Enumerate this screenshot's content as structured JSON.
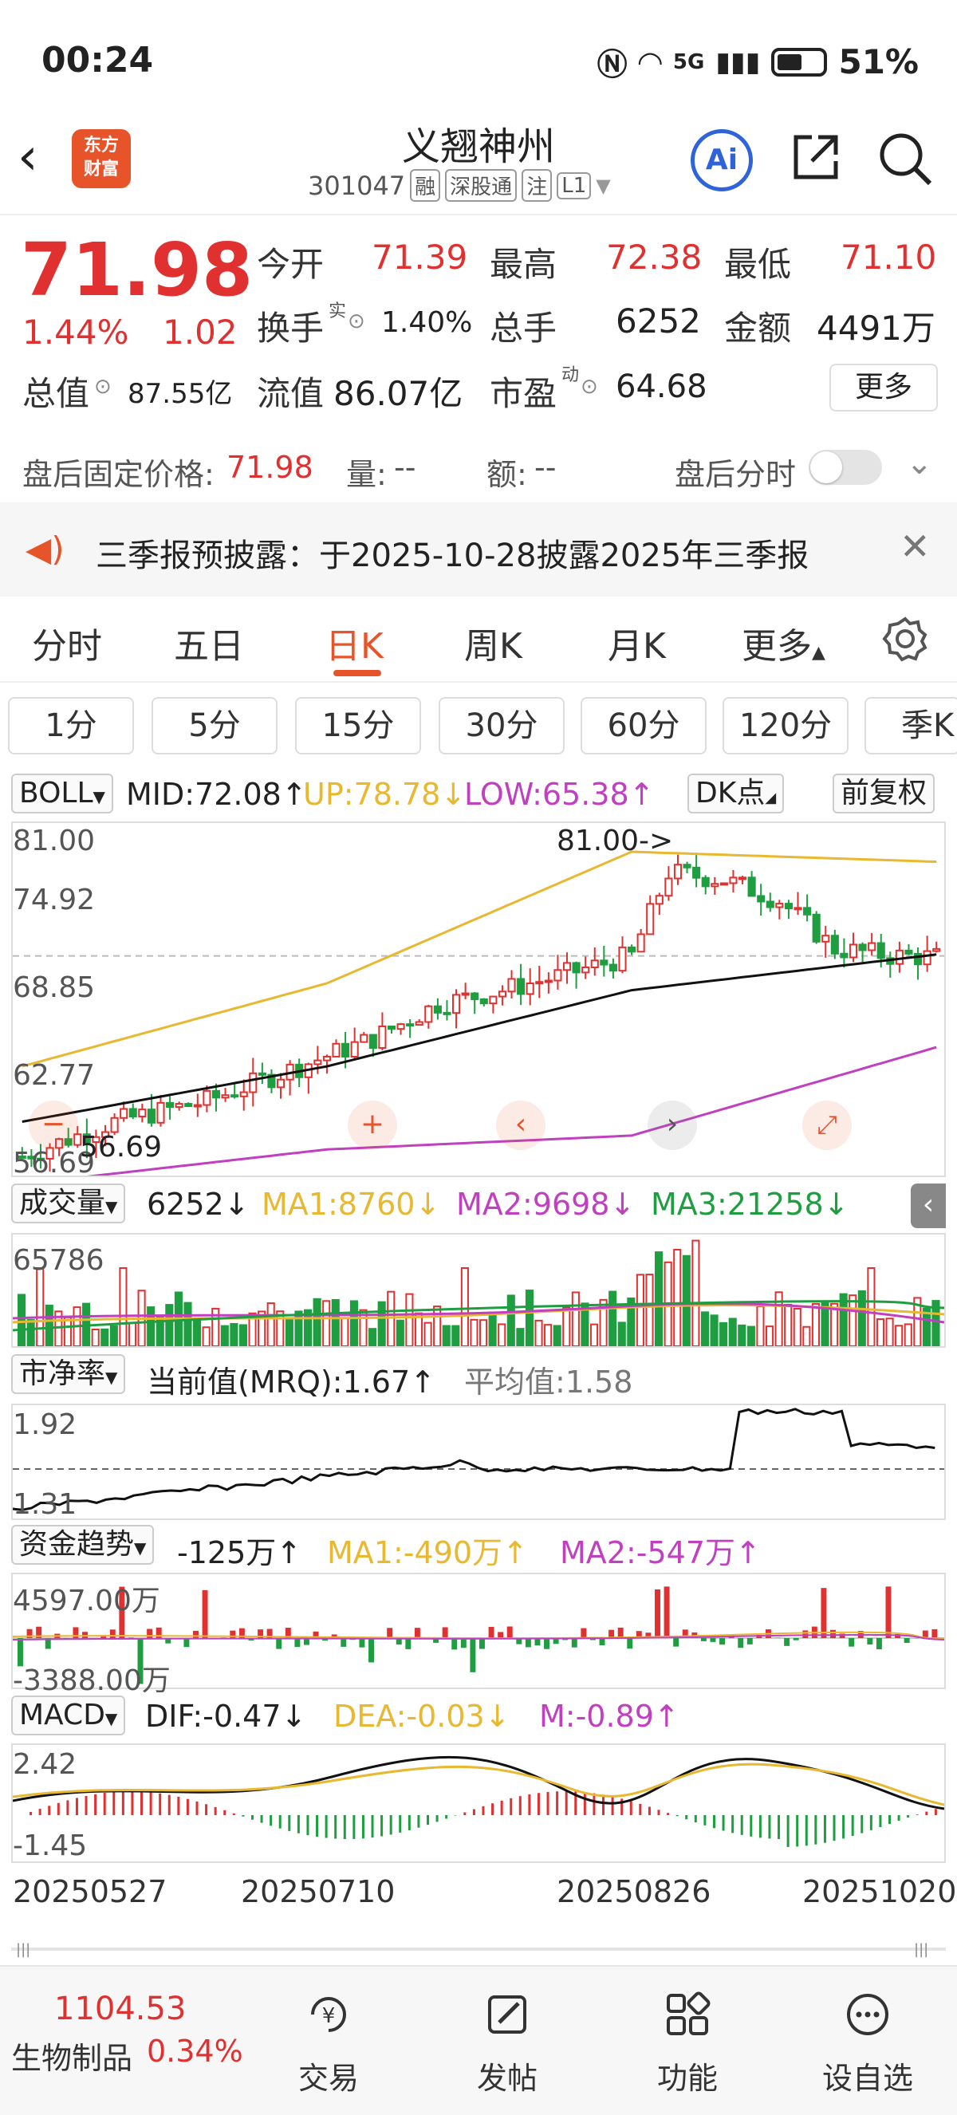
{
  "status": {
    "time": "00:24",
    "battery": "51%",
    "net": "5G"
  },
  "header": {
    "logo_line1": "东方",
    "logo_line2": "财富",
    "name": "义翘神州",
    "code": "301047",
    "tags": [
      "融",
      "深股通",
      "注",
      "L1"
    ],
    "ai": "Ai"
  },
  "quote": {
    "price": "71.98",
    "pct": "1.44%",
    "chg": "1.02",
    "open_label": "今开",
    "open": "71.39",
    "high_label": "最高",
    "high": "72.38",
    "low_label": "最低",
    "low": "71.10",
    "turnover_label": "换手",
    "turnover_sup": "实",
    "turnover": "1.40%",
    "volume_label": "总手",
    "volume": "6252",
    "amount_label": "金额",
    "amount": "4491万",
    "mktcap_label": "总值",
    "mktcap": "87.55亿",
    "float_label": "流值",
    "float": "86.07亿",
    "pe_label": "市盈",
    "pe_sup": "动",
    "pe": "64.68",
    "more": "更多"
  },
  "after": {
    "label": "盘后固定价格:",
    "price": "71.98",
    "vol_label": "量:",
    "vol": "--",
    "amt_label": "额:",
    "amt": "--",
    "switch_label": "盘后分时"
  },
  "notice": {
    "text": "三季报预披露：于2025-10-28披露2025年三季报"
  },
  "tabs": [
    "分时",
    "五日",
    "日K",
    "周K",
    "月K",
    "更多"
  ],
  "periods": [
    "1分",
    "5分",
    "15分",
    "30分",
    "60分",
    "120分",
    "季K"
  ],
  "boll": {
    "name": "BOLL",
    "mid": "MID:72.08",
    "up": "UP:78.78",
    "low": "LOW:65.38",
    "dk": "DK点",
    "adj": "前复权",
    "y": [
      "81.00",
      "74.92",
      "68.85",
      "62.77",
      "56.69"
    ],
    "max_label": "81.00->",
    "min_label": "56.69"
  },
  "vol": {
    "name": "成交量",
    "cur": "6252",
    "ma1": "MA1:8760",
    "ma2": "MA2:9698",
    "ma3": "MA3:21258",
    "ymax": "65786"
  },
  "pb": {
    "name": "市净率",
    "cur": "当前值(MRQ):1.67",
    "avg": "平均值:1.58",
    "ymax": "1.92",
    "ymin": "1.31"
  },
  "fund": {
    "name": "资金趋势",
    "cur": "-125万",
    "ma1": "MA1:-490万",
    "ma2": "MA2:-547万",
    "ymax": "4597.00万",
    "ymin": "-3388.00万"
  },
  "macd": {
    "name": "MACD",
    "dif": "DIF:-0.47",
    "dea": "DEA:-0.03",
    "m": "M:-0.89",
    "ymax": "2.42",
    "ymin": "-1.45"
  },
  "dates": [
    "20250527",
    "20250710",
    "20250826",
    "20251020"
  ],
  "bottom": {
    "index_value": "1104.53",
    "index_name": "生物制品",
    "index_pct": "0.34%",
    "items": [
      "交易",
      "发帖",
      "功能",
      "设自选"
    ]
  },
  "colors": {
    "up": "#e03030",
    "down": "#1e9e40",
    "accent": "#e8542a",
    "ma1": "#e8b830",
    "ma2": "#c040c0"
  },
  "chart_data": {
    "type": "line",
    "title": "",
    "x": [
      "20250527",
      "20250710",
      "20250826",
      "20251020"
    ],
    "ylim": [
      56.69,
      81.0
    ],
    "series": [
      {
        "name": "MID",
        "values": [
          60.0,
          64.0,
          69.5,
          72.08
        ]
      },
      {
        "name": "UP",
        "values": [
          64.0,
          70.0,
          79.5,
          78.78
        ]
      },
      {
        "name": "LOW",
        "values": [
          55.5,
          58.0,
          59.0,
          65.38
        ]
      }
    ]
  }
}
